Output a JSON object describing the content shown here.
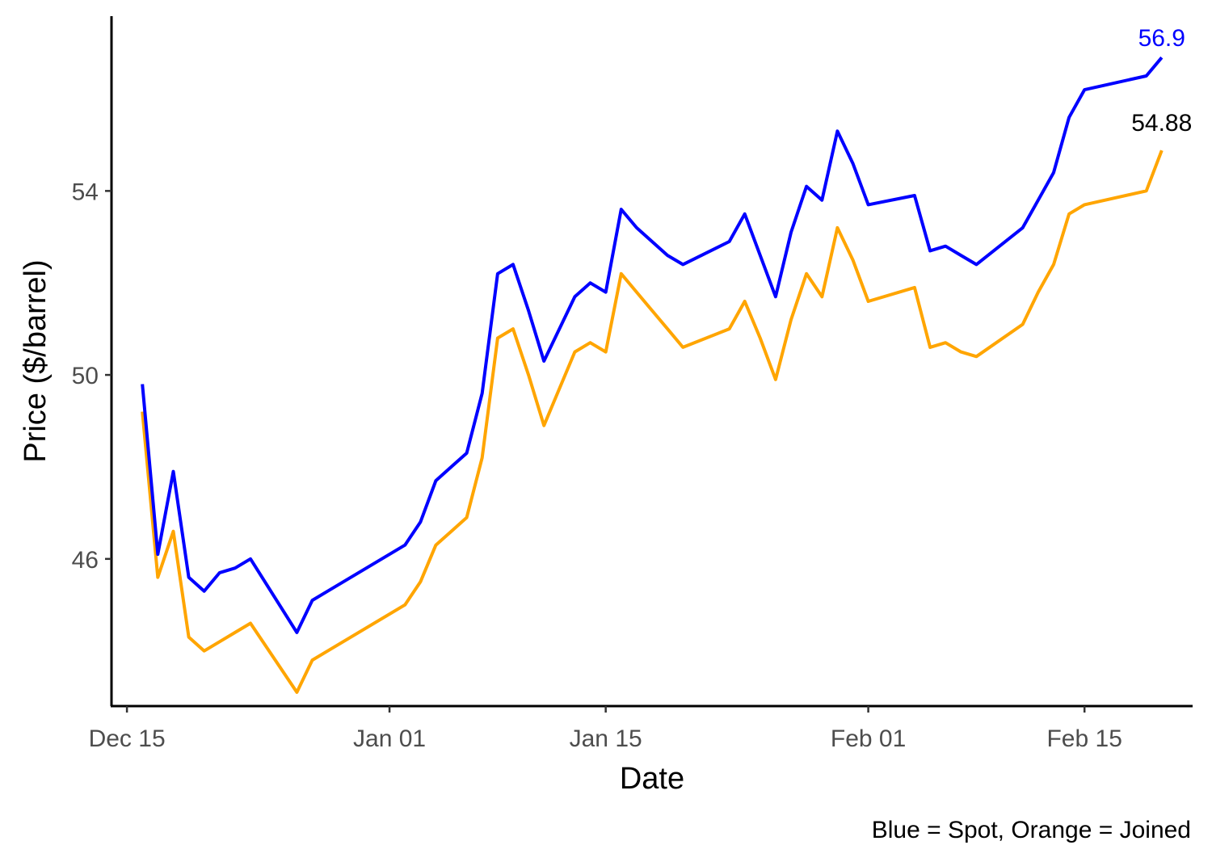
{
  "chart_data": {
    "type": "line",
    "xlabel": "Date",
    "ylabel": "Price ($/barrel)",
    "caption": "Blue = Spot, Orange = Joined",
    "xlim": [
      "2016-12-14",
      "2017-02-22"
    ],
    "ylim": [
      42.8,
      57.8
    ],
    "x_ticks": [
      {
        "date": "2016-12-15",
        "label": "Dec 15"
      },
      {
        "date": "2017-01-01",
        "label": "Jan 01"
      },
      {
        "date": "2017-01-15",
        "label": "Jan 15"
      },
      {
        "date": "2017-02-01",
        "label": "Feb 01"
      },
      {
        "date": "2017-02-15",
        "label": "Feb 15"
      }
    ],
    "y_ticks": [
      {
        "value": 46,
        "label": "46"
      },
      {
        "value": 50,
        "label": "50"
      },
      {
        "value": 54,
        "label": "54"
      }
    ],
    "grid": false,
    "colors": {
      "spot": "#0000ff",
      "joined": "#ffa500",
      "axis": "#000000"
    },
    "x": [
      "2016-12-16",
      "2016-12-17",
      "2016-12-18",
      "2016-12-19",
      "2016-12-20",
      "2016-12-21",
      "2016-12-22",
      "2016-12-23",
      "2016-12-26",
      "2016-12-27",
      "2016-12-28",
      "2017-01-02",
      "2017-01-03",
      "2017-01-04",
      "2017-01-05",
      "2017-01-06",
      "2017-01-07",
      "2017-01-08",
      "2017-01-09",
      "2017-01-10",
      "2017-01-11",
      "2017-01-13",
      "2017-01-14",
      "2017-01-15",
      "2017-01-16",
      "2017-01-17",
      "2017-01-18",
      "2017-01-19",
      "2017-01-20",
      "2017-01-23",
      "2017-01-24",
      "2017-01-25",
      "2017-01-26",
      "2017-01-27",
      "2017-01-28",
      "2017-01-29",
      "2017-01-30",
      "2017-01-31",
      "2017-02-01",
      "2017-02-04",
      "2017-02-05",
      "2017-02-06",
      "2017-02-07",
      "2017-02-08",
      "2017-02-11",
      "2017-02-12",
      "2017-02-13",
      "2017-02-14",
      "2017-02-15",
      "2017-02-19",
      "2017-02-20"
    ],
    "series": [
      {
        "key": "spot",
        "values": [
          49.8,
          46.1,
          47.9,
          45.6,
          45.3,
          45.7,
          45.8,
          46.0,
          44.4,
          45.1,
          45.3,
          46.3,
          46.8,
          47.7,
          48.0,
          48.3,
          49.6,
          52.2,
          52.4,
          51.4,
          50.3,
          51.7,
          52.0,
          51.8,
          53.6,
          53.2,
          52.9,
          52.6,
          52.4,
          52.9,
          53.5,
          52.6,
          51.7,
          53.1,
          54.1,
          53.8,
          55.3,
          54.6,
          53.7,
          53.9,
          52.7,
          52.8,
          52.6,
          52.4,
          53.2,
          53.8,
          54.4,
          55.6,
          56.2,
          56.5,
          56.9
        ],
        "end_label": "56.9"
      },
      {
        "key": "joined",
        "values": [
          49.2,
          45.6,
          46.6,
          44.3,
          44.0,
          44.2,
          44.4,
          44.6,
          43.1,
          43.8,
          44.0,
          45.0,
          45.5,
          46.3,
          46.6,
          46.9,
          48.2,
          50.8,
          51.0,
          50.0,
          48.9,
          50.5,
          50.7,
          50.5,
          52.2,
          51.8,
          51.4,
          51.0,
          50.6,
          51.0,
          51.6,
          50.8,
          49.9,
          51.2,
          52.2,
          51.7,
          53.2,
          52.5,
          51.6,
          51.9,
          50.6,
          50.7,
          50.5,
          50.4,
          51.1,
          51.8,
          52.4,
          53.5,
          53.7,
          54.0,
          54.88
        ],
        "end_label": "54.88"
      }
    ]
  }
}
